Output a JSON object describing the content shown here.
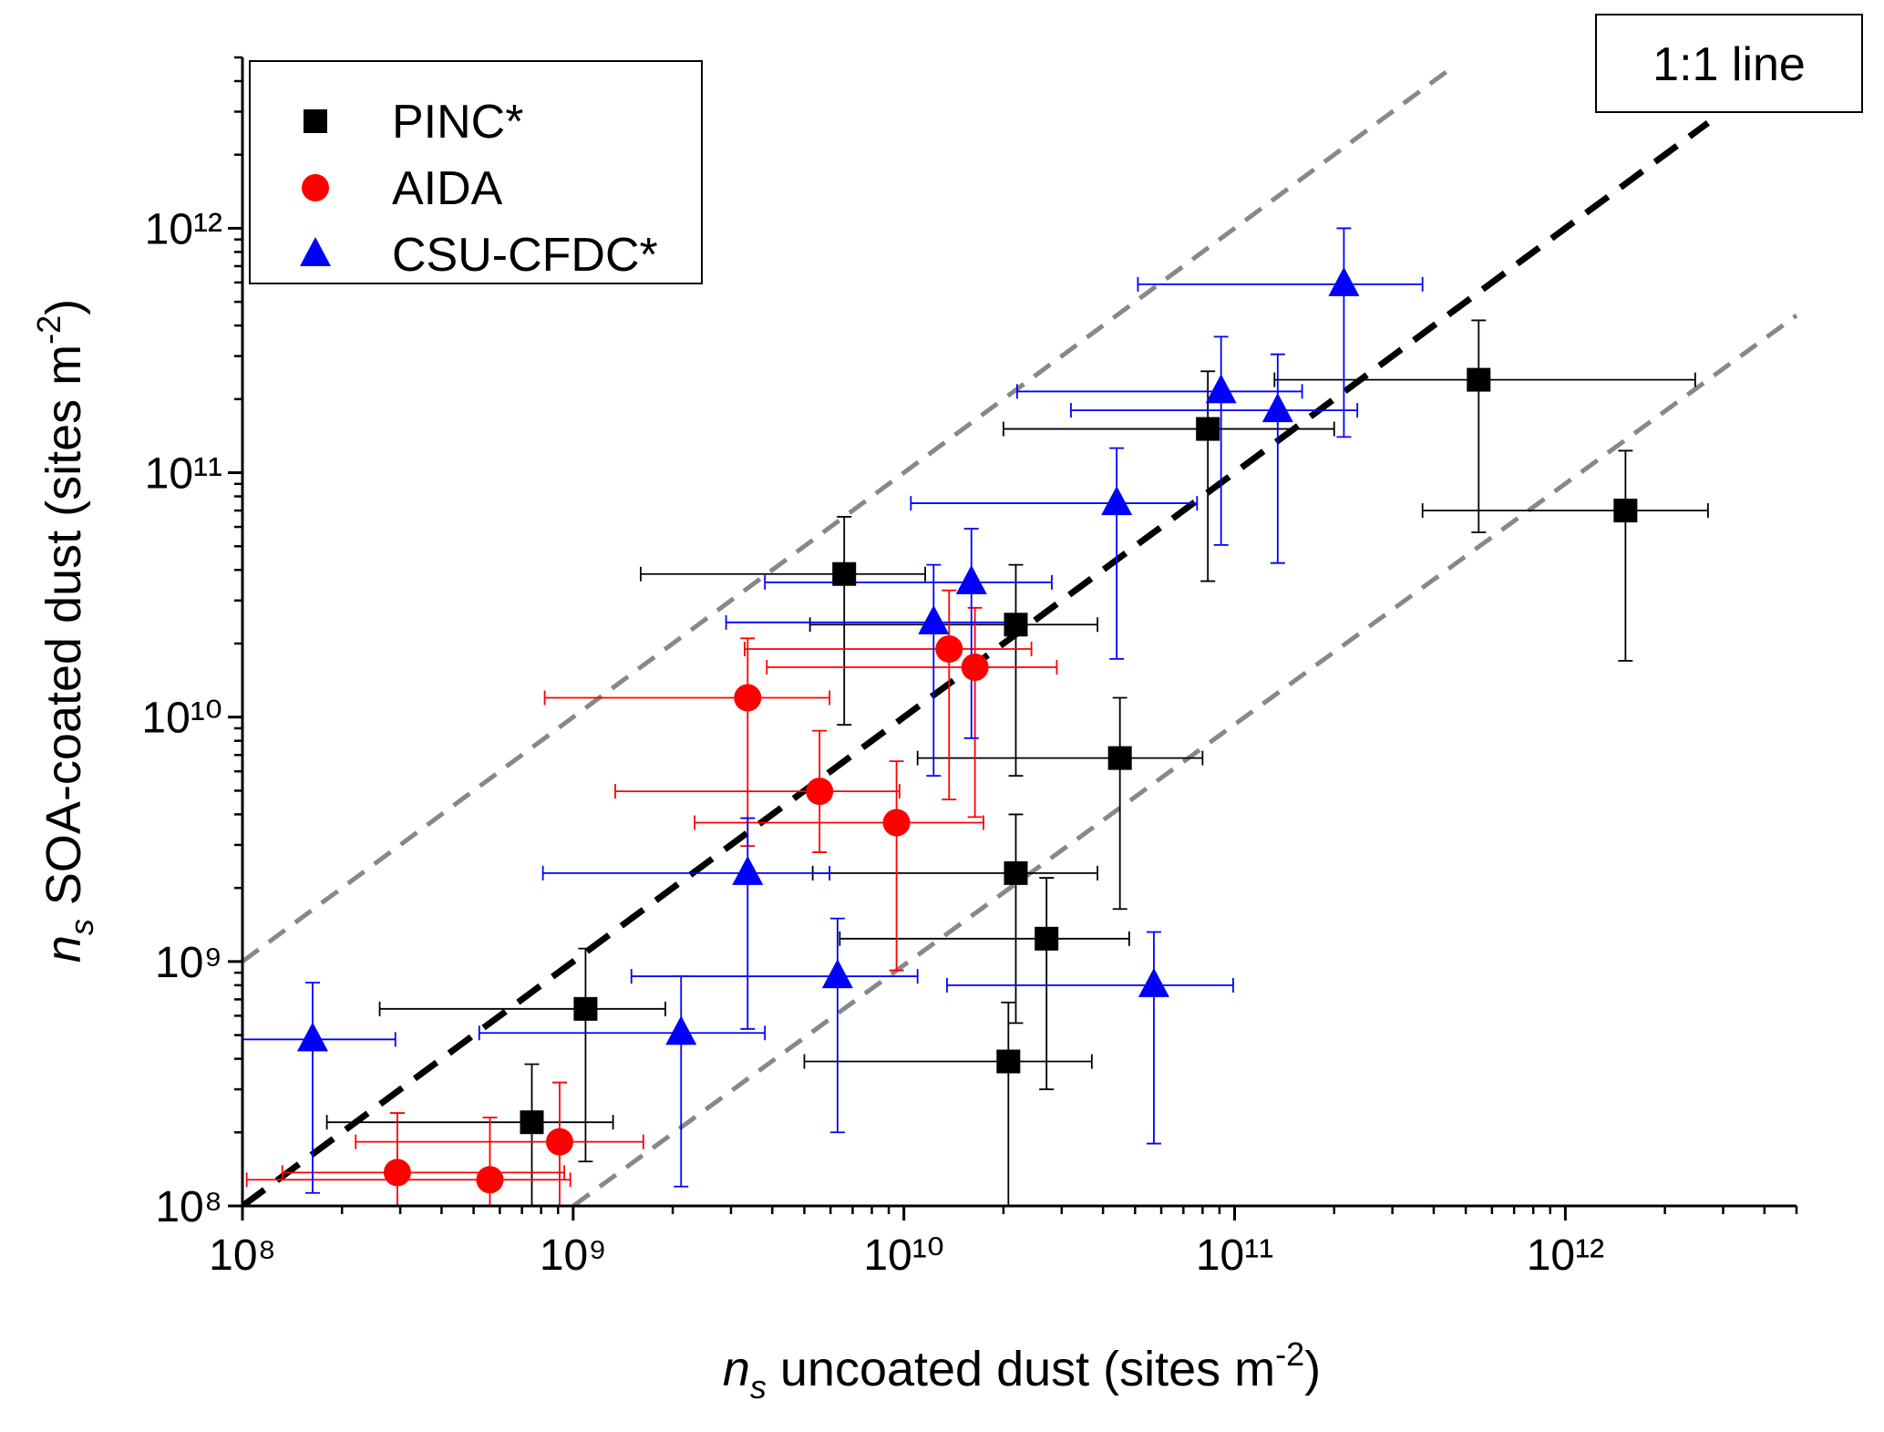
{
  "chart_data": {
    "type": "scatter",
    "xlabel": {
      "var": "n",
      "sub": "s",
      "text": " uncoated  dust (sites m",
      "sup": "-2",
      "end": ")"
    },
    "ylabel": {
      "var": "n",
      "sub": "s",
      "text": " SOA-coated  dust (sites m",
      "sup": "-2",
      "end": ")"
    },
    "log_x": true,
    "log_y": true,
    "xlim": [
      100000000,
      5000000000000
    ],
    "ylim": [
      100000000,
      5000000000000
    ],
    "xticks": [
      {
        "value": 100000000,
        "label": "10⁸"
      },
      {
        "value": 1000000000,
        "label": "10⁹"
      },
      {
        "value": 10000000000,
        "label": "10¹⁰"
      },
      {
        "value": 100000000000,
        "label": "10¹¹"
      },
      {
        "value": 1000000000000,
        "label": "10¹²"
      }
    ],
    "yticks": [
      {
        "value": 100000000,
        "label": "10⁸"
      },
      {
        "value": 1000000000,
        "label": "10⁹"
      },
      {
        "value": 10000000000,
        "label": "10¹⁰"
      },
      {
        "value": 100000000000,
        "label": "10¹¹"
      },
      {
        "value": 1000000000000,
        "label": "10¹²"
      }
    ],
    "legend": "upper left",
    "annotation": "1:1 line",
    "ref_lines": [
      {
        "x": [
          100000000,
          450000000000
        ],
        "y": [
          1000000000,
          4500000000000
        ],
        "color": "#888888"
      },
      {
        "x": [
          100000000,
          2700000000000
        ],
        "y": [
          100000000,
          2700000000000
        ],
        "color": "#000000"
      },
      {
        "x": [
          1000000000,
          5000000000000
        ],
        "y": [
          100000000,
          440000000000
        ],
        "color": "#888888"
      }
    ],
    "series": [
      {
        "name": "PINC*",
        "color": "#000000",
        "marker": "square",
        "x": [
          6600000000,
          21800000000,
          83000000000,
          547000000000,
          1520000000000,
          45000000000,
          21800000000,
          27000000000,
          20700000000,
          1090000000,
          750000000
        ],
        "values": [
          38500000000,
          23900000000,
          151000000000,
          240000000000,
          70000000000,
          6800000000,
          2300000000,
          1240000000,
          390000000,
          640000000,
          220000000
        ],
        "x_err": [
          [
            1600000000,
            11600000000
          ],
          [
            5200000000,
            38500000000
          ],
          [
            20000000000,
            200000000000
          ],
          [
            132000000000,
            2470000000000
          ],
          [
            370000000000,
            2700000000000
          ],
          [
            11000000000,
            80000000000
          ],
          [
            5300000000,
            38500000000
          ],
          [
            6400000000,
            48000000000
          ],
          [
            5000000000,
            37000000000
          ],
          [
            260000000,
            1900000000
          ],
          [
            180000000,
            1320000000
          ]
        ],
        "y_err": [
          [
            9300000000,
            66000000000
          ],
          [
            5750000000,
            42000000000
          ],
          [
            36000000000,
            260000000000
          ],
          [
            57000000000,
            420000000000
          ],
          [
            17000000000,
            123000000000
          ],
          [
            1640000000,
            12000000000
          ],
          [
            560000000,
            4000000000
          ],
          [
            300000000,
            2200000000
          ],
          [
            100000000,
            680000000
          ],
          [
            152000000,
            1130000000
          ],
          [
            100000000,
            380000000
          ]
        ]
      },
      {
        "name": "AIDA",
        "color": "#ff0000",
        "marker": "circle",
        "x": [
          3370000000,
          13700000000,
          16400000000,
          5560000000,
          9500000000,
          294000000,
          560000000,
          910000000
        ],
        "values": [
          12000000000,
          19000000000,
          16000000000,
          4970000000,
          3700000000,
          137000000,
          128000000,
          183000000
        ],
        "x_err": [
          [
            820000000,
            5960000000
          ],
          [
            3300000000,
            24300000000
          ],
          [
            3850000000,
            29000000000
          ],
          [
            1340000000,
            9700000000
          ],
          [
            2330000000,
            17400000000
          ],
          [
            132000000,
            940000000
          ],
          [
            103000000,
            980000000
          ],
          [
            220000000,
            1630000000
          ]
        ],
        "y_err": [
          [
            2970000000,
            21000000000
          ],
          [
            4600000000,
            33000000000
          ],
          [
            3900000000,
            28000000000
          ],
          [
            2800000000,
            8800000000
          ],
          [
            920000000,
            6600000000
          ],
          [
            100000000,
            240000000
          ],
          [
            100000000,
            230000000
          ],
          [
            100000000,
            320000000
          ]
        ]
      },
      {
        "name": "CSU-CFDC*",
        "color": "#0000ff",
        "marker": "triangle",
        "x": [
          163000000,
          2120000000,
          3370000000,
          6300000000,
          12300000000,
          16000000000,
          44000000000,
          91000000000,
          135000000000,
          214000000000,
          57000000000
        ],
        "values": [
          480000000,
          510000000,
          2300000000,
          870000000,
          24400000000,
          35600000000,
          75000000000,
          215000000000,
          180000000000,
          590000000000,
          800000000
        ],
        "x_err": [
          [
            100000000,
            290000000
          ],
          [
            520000000,
            3800000000
          ],
          [
            810000000,
            5960000000
          ],
          [
            1500000000,
            11000000000
          ],
          [
            2900000000,
            21800000000
          ],
          [
            3800000000,
            28000000000
          ],
          [
            10500000000,
            77000000000
          ],
          [
            22000000000,
            160000000000
          ],
          [
            32000000000,
            235000000000
          ],
          [
            51000000000,
            370000000000
          ],
          [
            13500000000,
            99000000000
          ]
        ],
        "y_err": [
          [
            113000000,
            820000000
          ],
          [
            120000000,
            870000000
          ],
          [
            530000000,
            3860000000
          ],
          [
            200000000,
            1500000000
          ],
          [
            5750000000,
            42000000000
          ],
          [
            8200000000,
            59000000000
          ],
          [
            17300000000,
            126000000000
          ],
          [
            50600000000,
            360000000000
          ],
          [
            42700000000,
            305000000000
          ],
          [
            140000000000,
            1000000000000
          ],
          [
            180000000,
            1320000000
          ]
        ]
      }
    ]
  }
}
